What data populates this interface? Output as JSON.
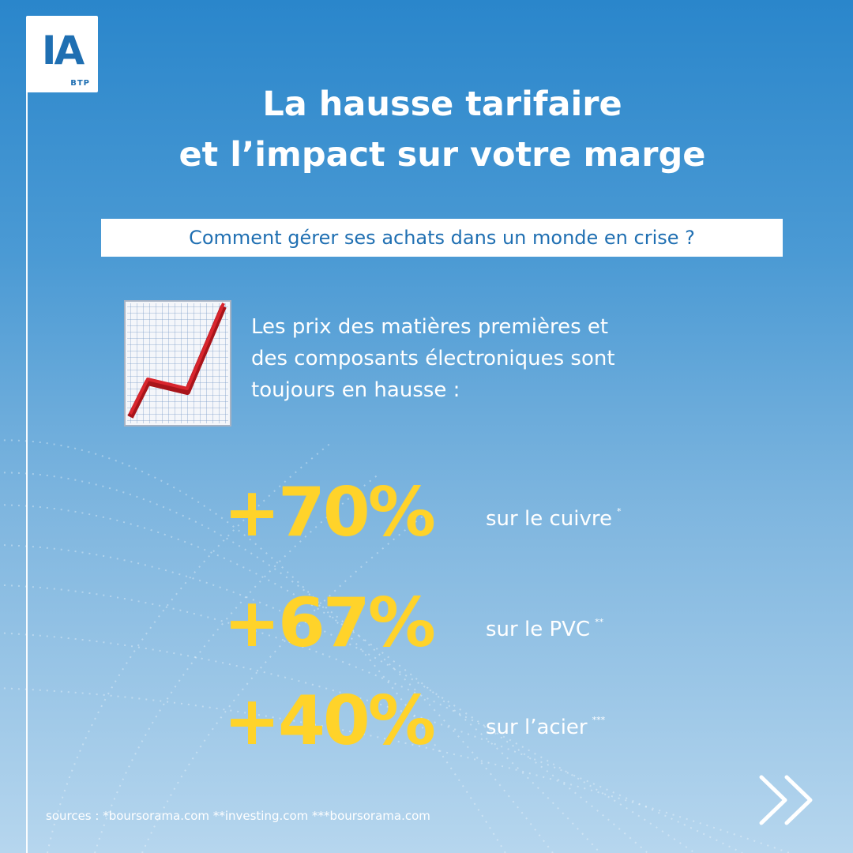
{
  "logo": {
    "letters": "IA",
    "sub": "BTP"
  },
  "title": {
    "line1": "La hausse tarifaire",
    "line2": "et l’impact sur votre marge"
  },
  "subtitle": "Comment gérer ses achats dans un monde en crise ?",
  "intro": {
    "line1": "Les prix des matières premières et",
    "line2": "des composants électroniques sont",
    "line3": "toujours en hausse :"
  },
  "stats": [
    {
      "value": "+70%",
      "label": "sur le cuivre",
      "mark": "*"
    },
    {
      "value": "+67%",
      "label": "sur le PVC",
      "mark": "**"
    },
    {
      "value": "+40%",
      "label": "sur l’acier",
      "mark": "***"
    }
  ],
  "sources": "sources : *boursorama.com **investing.com ***boursorama.com",
  "icons": {
    "chart": "chart-increasing-icon",
    "next": "double-chevron-right-icon"
  },
  "colors": {
    "accent": "#ffd32a",
    "brand": "#1f6fb2",
    "chart_line": "#c8161d"
  }
}
